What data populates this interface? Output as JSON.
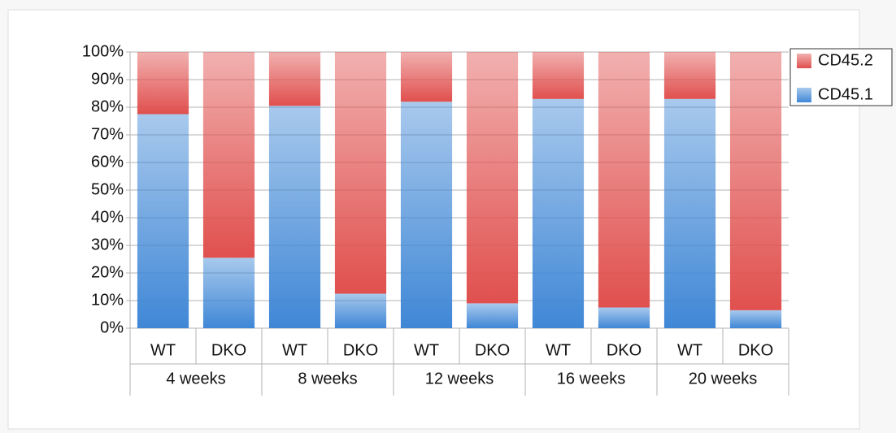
{
  "chart_data": {
    "type": "bar",
    "stacked": true,
    "categories": [
      "WT",
      "DKO",
      "WT",
      "DKO",
      "WT",
      "DKO",
      "WT",
      "DKO",
      "WT",
      "DKO"
    ],
    "groups": [
      "4 weeks",
      "8 weeks",
      "12 weeks",
      "16 weeks",
      "20 weeks"
    ],
    "series": [
      {
        "name": "CD45.1",
        "color": "#3f87d6",
        "values": [
          77.5,
          25.5,
          80.5,
          12.5,
          82,
          9,
          83,
          7.5,
          83,
          6.5
        ]
      },
      {
        "name": "CD45.2",
        "color": "#e0504e",
        "values": [
          22.5,
          74.5,
          19.5,
          87.5,
          18,
          91,
          17,
          92.5,
          17,
          93.5
        ]
      }
    ],
    "ylim": [
      0,
      100
    ],
    "yticks": [
      {
        "value": 0,
        "label": "0%"
      },
      {
        "value": 10,
        "label": "10%"
      },
      {
        "value": 20,
        "label": "20%"
      },
      {
        "value": 30,
        "label": "30%"
      },
      {
        "value": 40,
        "label": "40%"
      },
      {
        "value": 50,
        "label": "50%"
      },
      {
        "value": 60,
        "label": "60%"
      },
      {
        "value": 70,
        "label": "70%"
      },
      {
        "value": 80,
        "label": "80%"
      },
      {
        "value": 90,
        "label": "90%"
      },
      {
        "value": 100,
        "label": "100%"
      }
    ],
    "grid": true,
    "legend": "right"
  }
}
